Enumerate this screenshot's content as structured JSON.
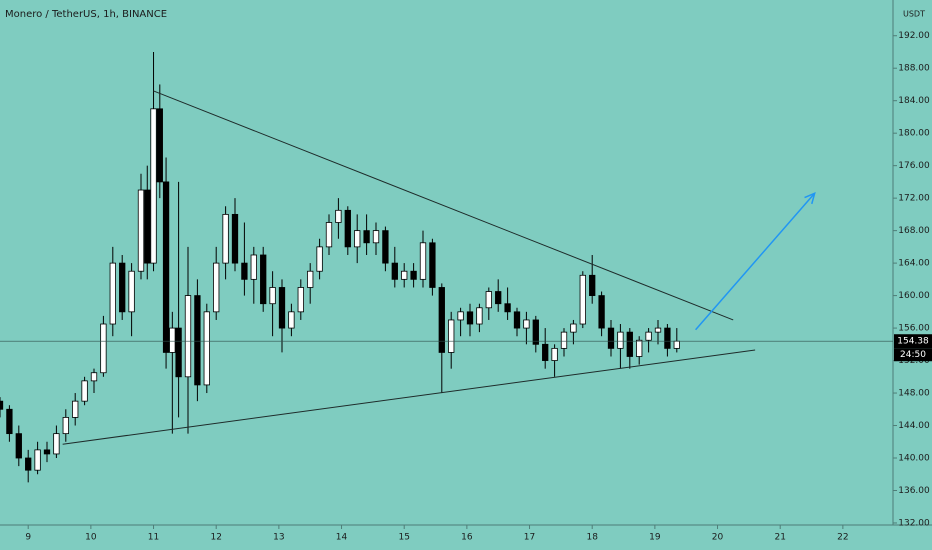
{
  "chart_data": {
    "type": "candlestick",
    "title": "Monero / TetherUS, 1h, BINANCE",
    "currency": "USDT",
    "countdown": "24:50",
    "x": [
      8.55,
      8.7,
      8.85,
      9.0,
      9.15,
      9.3,
      9.45,
      9.6,
      9.75,
      9.9,
      10.05,
      10.2,
      10.35,
      10.5,
      10.65,
      10.8,
      10.9,
      11.0,
      11.1,
      11.2,
      11.3,
      11.4,
      11.55,
      11.7,
      11.85,
      12.0,
      12.15,
      12.3,
      12.45,
      12.6,
      12.75,
      12.9,
      13.05,
      13.2,
      13.35,
      13.5,
      13.65,
      13.8,
      13.95,
      14.1,
      14.25,
      14.4,
      14.55,
      14.7,
      14.85,
      15.0,
      15.15,
      15.3,
      15.45,
      15.6,
      15.75,
      15.9,
      16.05,
      16.2,
      16.35,
      16.5,
      16.65,
      16.8,
      16.95,
      17.1,
      17.25,
      17.4,
      17.55,
      17.7,
      17.85,
      18.0,
      18.15,
      18.3,
      18.45,
      18.6,
      18.75,
      18.9,
      19.05,
      19.2,
      19.35
    ],
    "open": [
      147,
      146,
      143,
      140,
      138.5,
      141,
      140.5,
      143,
      145,
      147,
      149.5,
      150.5,
      156.5,
      164,
      158,
      163,
      173,
      164,
      183,
      174,
      153,
      156,
      150,
      160,
      149,
      158,
      164,
      170,
      164,
      162,
      165,
      159,
      161,
      156,
      158,
      161,
      163,
      166,
      169,
      170.5,
      166,
      168,
      166.5,
      168,
      164,
      162,
      163,
      162,
      166.5,
      161,
      153,
      157,
      158,
      156.5,
      158.5,
      160.5,
      159,
      158,
      156,
      157,
      154,
      152,
      153.5,
      155.5,
      156.5,
      162.5,
      160,
      156,
      153.5,
      155.5,
      152.5,
      154.5,
      155.5,
      156,
      153.5
    ],
    "high": [
      147.5,
      146.5,
      144,
      141,
      142,
      142,
      144,
      146,
      148,
      150,
      151,
      157.5,
      166,
      165,
      164,
      175,
      176,
      190,
      186,
      177,
      158,
      174,
      166,
      162,
      159,
      166,
      171,
      172,
      169,
      166,
      166,
      163,
      162,
      159,
      162,
      164,
      167,
      170,
      172,
      171,
      170,
      170,
      169,
      168.5,
      166,
      164,
      164,
      168,
      167,
      161.5,
      158,
      158.5,
      159,
      159,
      161,
      162,
      161,
      158.5,
      158,
      157.5,
      156,
      154,
      156,
      157,
      163,
      165,
      160.5,
      157,
      156.5,
      156,
      155,
      156,
      157,
      156.5,
      156
    ],
    "low": [
      145,
      142,
      139,
      137,
      138,
      139.5,
      140,
      142,
      144,
      146.5,
      148,
      150,
      155,
      157,
      155,
      162,
      162,
      163,
      172,
      151,
      143,
      145,
      143,
      147,
      148,
      157,
      162,
      163,
      160,
      159,
      158,
      155,
      153,
      155,
      157,
      159,
      162,
      165,
      167,
      165,
      164,
      165,
      165,
      163,
      161,
      161,
      161,
      161,
      160,
      148,
      151,
      155,
      155,
      155.5,
      157,
      158,
      157,
      155,
      154,
      153,
      151,
      150,
      152.5,
      154,
      156,
      159,
      155,
      152.5,
      151,
      151,
      151.5,
      153,
      154,
      152.5,
      153
    ],
    "close": [
      146,
      143,
      140,
      138.5,
      141,
      140.5,
      143,
      145,
      147,
      149.5,
      150.5,
      156.5,
      164,
      158,
      163,
      173,
      164,
      183,
      174,
      153,
      156,
      150,
      160,
      149,
      158,
      164,
      170,
      164,
      162,
      165,
      159,
      161,
      156,
      158,
      161,
      163,
      166,
      169,
      170.5,
      166,
      168,
      166.5,
      168,
      164,
      162,
      163,
      162,
      166.5,
      161,
      153,
      157,
      158,
      156.5,
      158.5,
      160.5,
      159,
      158,
      156,
      157,
      154,
      152,
      153.5,
      155.5,
      156.5,
      162.5,
      160,
      156,
      153.5,
      155.5,
      152.5,
      154.5,
      155.5,
      156,
      153.5,
      154.38
    ],
    "up_color": "#ffffff",
    "down_color": "#000000",
    "drawings": [
      {
        "x": [
          11.0,
          20.25
        ],
        "y": [
          185.2,
          157
        ],
        "color": "#1e2b2a"
      },
      {
        "x": [
          9.55,
          20.6
        ],
        "y": [
          141.7,
          153.3
        ],
        "color": "#1e2b2a"
      },
      {
        "x": [
          19.65,
          21.55
        ],
        "y": [
          155.8,
          172.6
        ],
        "color": "#2196f3",
        "arrow": true
      }
    ],
    "xlim": [
      8.55,
      22.8
    ],
    "ylim": [
      131.75,
      196.4
    ],
    "xticks": [
      9,
      10,
      11,
      12,
      13,
      14,
      15,
      16,
      17,
      18,
      19,
      20,
      21,
      22
    ],
    "yticks": [
      {
        "value": 132,
        "label": "132.00"
      },
      {
        "value": 136,
        "label": "136.00"
      },
      {
        "value": 140,
        "label": "140.00"
      },
      {
        "value": 144,
        "label": "144.00"
      },
      {
        "value": 148,
        "label": "148.00"
      },
      {
        "value": 152,
        "label": "152.00"
      },
      {
        "value": 156,
        "label": "156.00"
      },
      {
        "value": 160,
        "label": "160.00"
      },
      {
        "value": 164,
        "label": "164.00"
      },
      {
        "value": 168,
        "label": "168.00"
      },
      {
        "value": 172,
        "label": "172.00"
      },
      {
        "value": 176,
        "label": "176.00"
      },
      {
        "value": 180,
        "label": "180.00"
      },
      {
        "value": 184,
        "label": "184.00"
      },
      {
        "value": 188,
        "label": "188.00"
      },
      {
        "value": 192,
        "label": "192.00"
      }
    ],
    "grid": false
  }
}
